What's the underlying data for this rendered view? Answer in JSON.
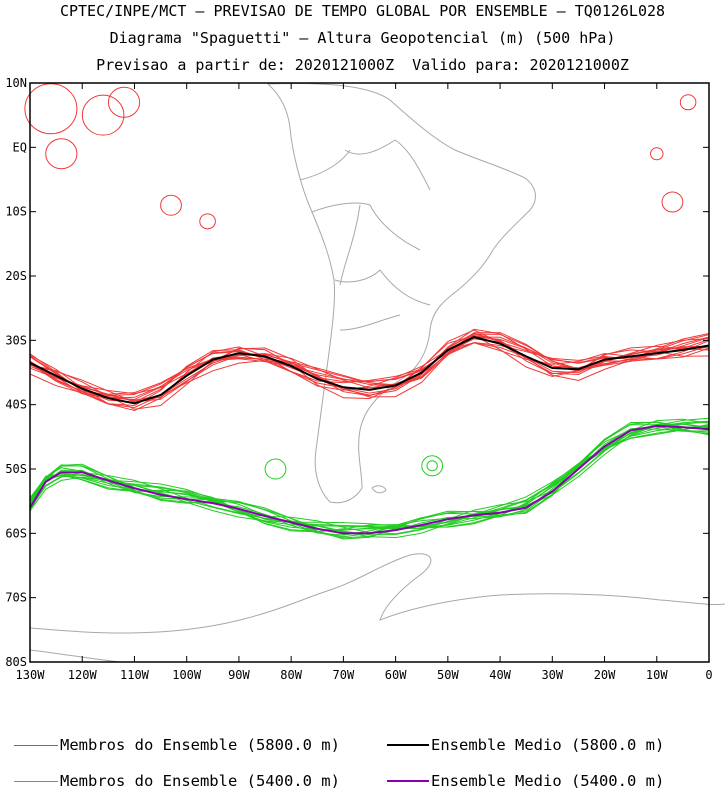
{
  "header": {
    "line1": "CPTEC/INPE/MCT — PREVISAO DE TEMPO GLOBAL POR ENSEMBLE — TQ0126L028",
    "line2": "Diagrama \"Spaguetti\" — Altura Geopotencial (m) (500 hPa)",
    "line3": "Previsao a partir de: 2020121000Z  Valido para: 2020121000Z"
  },
  "chart_data": {
    "type": "line",
    "title": "Diagrama \"Spaguetti\" — Altura Geopotencial (m) (500 hPa)",
    "x_ticks": [
      "130W",
      "120W",
      "110W",
      "100W",
      "90W",
      "80W",
      "70W",
      "60W",
      "50W",
      "40W",
      "30W",
      "20W",
      "10W",
      "0"
    ],
    "y_ticks": [
      "10N",
      "EQ",
      "10S",
      "20S",
      "30S",
      "40S",
      "50S",
      "60S",
      "70S",
      "80S"
    ],
    "xlim": [
      -130,
      0
    ],
    "ylim": [
      -80,
      10
    ],
    "series": [
      {
        "name": "Ensemble Medio (5800.0 m)",
        "color": "#000000",
        "lon": [
          -130,
          -125,
          -120,
          -115,
          -110,
          -105,
          -100,
          -95,
          -90,
          -85,
          -80,
          -75,
          -70,
          -65,
          -60,
          -55,
          -50,
          -45,
          -40,
          -35,
          -30,
          -25,
          -20,
          -15,
          -10,
          -5,
          0
        ],
        "lat": [
          -33.5,
          -35.5,
          -37.5,
          -39,
          -39.8,
          -38.5,
          -35.5,
          -33,
          -32,
          -32.5,
          -34,
          -36,
          -37.3,
          -37.7,
          -37,
          -35,
          -31.5,
          -29.5,
          -30.5,
          -32.5,
          -34.3,
          -34.5,
          -33,
          -32.5,
          -32,
          -31.5,
          -30.8
        ]
      },
      {
        "name": "Ensemble Medio (5400.0 m)",
        "color": "#8a00b0",
        "lon": [
          -130,
          -127,
          -124,
          -120,
          -115,
          -110,
          -105,
          -100,
          -95,
          -90,
          -85,
          -80,
          -75,
          -70,
          -65,
          -60,
          -55,
          -50,
          -45,
          -40,
          -35,
          -30,
          -25,
          -20,
          -15,
          -10,
          -5,
          0
        ],
        "lat": [
          -56,
          -52,
          -50.5,
          -50.5,
          -51.8,
          -53,
          -54,
          -54.7,
          -55.3,
          -56.2,
          -57.3,
          -58.3,
          -59.3,
          -60,
          -60,
          -59.5,
          -58.7,
          -57.8,
          -57.2,
          -56.8,
          -56,
          -53.5,
          -50,
          -46.5,
          -44,
          -43.3,
          -43.5,
          -43.8
        ]
      }
    ],
    "members": [
      {
        "name": "Membros do Ensemble (5800.0 m)",
        "color": "#f03a3a",
        "count": 14
      },
      {
        "name": "Membros do Ensemble (5400.0 m)",
        "color": "#22cc22",
        "count": 14
      }
    ],
    "grid": false
  },
  "legend": {
    "items": [
      {
        "label": "Membros do Ensemble (5800.0 m)",
        "color": "#f03a3a"
      },
      {
        "label": "Ensemble Medio (5800.0 m)",
        "color": "#000000"
      },
      {
        "label": "Membros do Ensemble (5400.0 m)",
        "color": "#22cc22"
      },
      {
        "label": "Ensemble Medio (5400.0 m)",
        "color": "#8a00b0"
      }
    ]
  }
}
